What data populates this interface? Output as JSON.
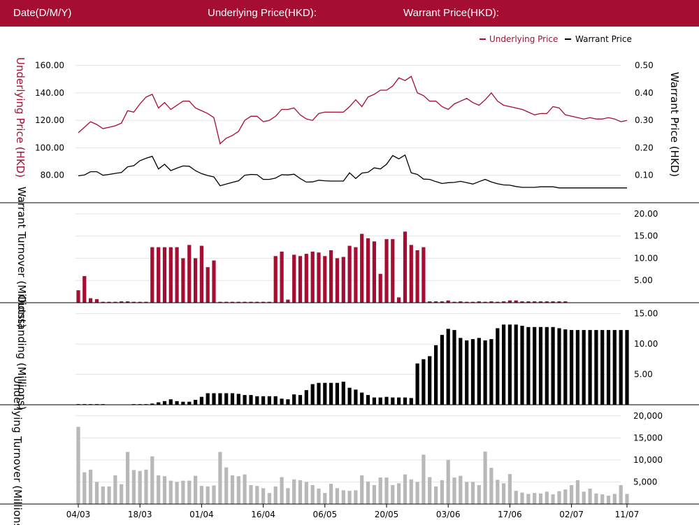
{
  "header": {
    "date_label": "Date(D/M/Y)",
    "underlying_label": "Underlying Price(HKD):",
    "warrant_label": "Warrant Price(HKD):"
  },
  "colors": {
    "brand": "#a50d32",
    "warrant_line": "#000000",
    "outstanding_bar": "#000000",
    "underlying_turnover_bar": "#b8b8b8",
    "grid": "#e4e4e4"
  },
  "chart_data": [
    {
      "type": "line",
      "legend": [
        "Underlying Price",
        "Warrant Price"
      ],
      "legend_position": "top-right",
      "ylabel_left": "Underlying Price (HKD)",
      "ylabel_right": "Warrant  Price (HKD)",
      "yticks_left": [
        "80.00",
        "100.00",
        "120.00",
        "140.00",
        "160.00"
      ],
      "yticks_right": [
        "0.10",
        "0.20",
        "0.30",
        "0.40",
        "0.50"
      ],
      "ylim_left": [
        60,
        170
      ],
      "ylim_right": [
        0,
        0.55
      ],
      "series": [
        {
          "name": "Underlying Price",
          "axis": "left",
          "color": "#a50d32",
          "values": [
            111,
            115,
            119,
            117,
            114,
            115,
            116,
            118,
            127,
            126,
            132,
            137,
            139,
            129,
            133,
            128,
            131,
            134,
            134,
            129,
            127,
            125,
            122,
            103,
            107,
            109,
            112,
            120,
            123,
            123,
            119,
            120,
            123,
            128,
            128,
            129,
            124,
            121,
            120,
            125,
            126,
            126,
            126,
            126,
            130,
            135,
            130,
            137,
            139,
            142,
            142,
            145,
            151,
            149,
            152,
            140,
            138,
            134,
            134,
            130,
            128,
            132,
            134,
            136,
            133,
            131,
            135,
            140,
            134,
            131,
            130,
            129,
            128,
            126,
            124,
            125,
            125,
            130,
            129,
            124,
            123,
            122,
            121,
            122,
            121,
            121,
            122,
            121,
            119,
            120
          ]
        },
        {
          "name": "Warrant Price",
          "axis": "right",
          "color": "#000000",
          "values": [
            0.098,
            0.101,
            0.113,
            0.113,
            0.1,
            0.103,
            0.107,
            0.11,
            0.131,
            0.135,
            0.153,
            0.162,
            0.169,
            0.123,
            0.14,
            0.117,
            0.126,
            0.134,
            0.133,
            0.117,
            0.106,
            0.099,
            0.094,
            0.062,
            0.068,
            0.074,
            0.08,
            0.1,
            0.103,
            0.102,
            0.085,
            0.085,
            0.09,
            0.102,
            0.101,
            0.104,
            0.088,
            0.075,
            0.076,
            0.082,
            0.08,
            0.079,
            0.079,
            0.079,
            0.109,
            0.088,
            0.108,
            0.111,
            0.127,
            0.123,
            0.14,
            0.172,
            0.16,
            0.174,
            0.109,
            0.103,
            0.086,
            0.085,
            0.077,
            0.07,
            0.073,
            0.074,
            0.078,
            0.073,
            0.068,
            0.077,
            0.085,
            0.076,
            0.069,
            0.065,
            0.064,
            0.059,
            0.056,
            0.056,
            0.056,
            0.058,
            0.058,
            0.058,
            0.054,
            0.054,
            0.054,
            0.054,
            0.054,
            0.054,
            0.054,
            0.054,
            0.054,
            0.054,
            0.054,
            0.054
          ]
        }
      ]
    },
    {
      "type": "bar",
      "ylabel": "Warrant  Turnover (Millions)",
      "yticks": [
        "5.00",
        "10.00",
        "15.00",
        "20.00"
      ],
      "ylim": [
        0,
        22.5
      ],
      "color": "#a50d32",
      "values": [
        2.8,
        6.0,
        1.0,
        0.8,
        0.2,
        0.2,
        0.2,
        0.3,
        0.3,
        0.2,
        0.2,
        0.2,
        12.5,
        12.5,
        12.5,
        12.5,
        12.5,
        10.0,
        13.0,
        10.0,
        12.8,
        8.0,
        9.5,
        0.2,
        0.2,
        0.2,
        0.2,
        0.2,
        0.2,
        0.2,
        0.2,
        0.2,
        10.5,
        11.5,
        0.7,
        10.8,
        10.5,
        11.0,
        11.5,
        11.3,
        10.5,
        11.8,
        10.0,
        10.3,
        12.8,
        12.5,
        15.5,
        14.5,
        13.8,
        6.5,
        14.3,
        14.3,
        1.2,
        16.0,
        13.0,
        11.8,
        12.5,
        0.3,
        0.3,
        0.3,
        0.5,
        0.2,
        0.3,
        0.2,
        0.2,
        0.3,
        0.2,
        0.3,
        0.2,
        0.3,
        0.5,
        0.5,
        0.3,
        0.3,
        0.3,
        0.3,
        0.3,
        0.3,
        0.3,
        0.3,
        0,
        0,
        0,
        0,
        0,
        0,
        0,
        0,
        0,
        0
      ]
    },
    {
      "type": "bar",
      "ylabel": "Outstanding (Millions)",
      "yticks": [
        "5.00",
        "10.00",
        "15.00"
      ],
      "ylim": [
        0,
        16.8
      ],
      "color": "#000000",
      "values": [
        0.1,
        0.1,
        0.1,
        0.1,
        0.1,
        0,
        0,
        0,
        0,
        0.1,
        0.1,
        0.1,
        0.2,
        0.4,
        0.6,
        0.9,
        0.6,
        0.5,
        0.5,
        0.8,
        1.3,
        1.9,
        1.9,
        1.9,
        1.9,
        1.9,
        1.8,
        1.6,
        1.6,
        1.4,
        1.4,
        1.4,
        1.4,
        1.0,
        0.9,
        1.7,
        1.6,
        2.4,
        3.4,
        3.6,
        3.6,
        3.6,
        3.6,
        3.8,
        2.8,
        2.5,
        2.0,
        1.6,
        1.2,
        1.2,
        1.3,
        1.2,
        1.2,
        1.2,
        1.1,
        6.8,
        7.5,
        8.0,
        9.8,
        11.5,
        12.5,
        12.3,
        11.0,
        10.6,
        10.8,
        11.0,
        10.6,
        10.8,
        12.6,
        13.2,
        13.2,
        13.2,
        13.0,
        12.8,
        12.8,
        12.8,
        12.8,
        12.8,
        12.6,
        12.4,
        12.3,
        12.3,
        12.3,
        12.3,
        12.3,
        12.3,
        12.3,
        12.3,
        12.3,
        12.3
      ]
    },
    {
      "type": "bar",
      "ylabel": "Underlying Turnover (Millions)",
      "yticks": [
        "5,000",
        "10,000",
        "15,000",
        "20,000"
      ],
      "ylim": [
        0,
        22500
      ],
      "color": "#b8b8b8",
      "values": [
        17500,
        7200,
        7800,
        5000,
        4000,
        4000,
        6500,
        4500,
        11800,
        7700,
        7500,
        7800,
        10800,
        6500,
        6300,
        5300,
        5000,
        5300,
        5300,
        6400,
        4100,
        4000,
        4200,
        11800,
        8300,
        6500,
        6300,
        6700,
        4300,
        4100,
        3600,
        2500,
        4000,
        6100,
        3600,
        5600,
        5400,
        5000,
        4300,
        3500,
        2500,
        4600,
        3600,
        3100,
        3000,
        3100,
        6500,
        5100,
        4300,
        6000,
        6000,
        4300,
        4700,
        6700,
        5600,
        5000,
        11200,
        6100,
        4000,
        5400,
        10000,
        6000,
        6400,
        5000,
        5000,
        4300,
        11900,
        8200,
        5500,
        4700,
        6800,
        3000,
        2600,
        2300,
        2500,
        2400,
        2800,
        2200,
        2900,
        3300,
        4300,
        5400,
        2800,
        3500,
        2400,
        2200,
        1900,
        2300,
        4300,
        2300
      ]
    }
  ],
  "x_tick_labels": [
    "04/03",
    "18/03",
    "01/04",
    "16/04",
    "06/05",
    "20/05",
    "03/06",
    "17/06",
    "02/07",
    "11/07"
  ],
  "x_tick_index": [
    0,
    10,
    20,
    30,
    40,
    50,
    60,
    70,
    80,
    89
  ]
}
